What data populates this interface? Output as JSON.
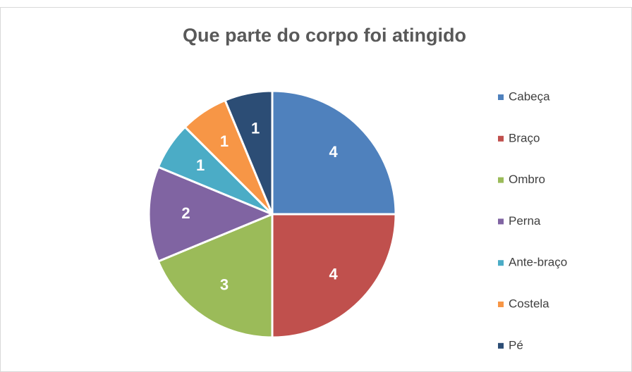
{
  "chart_data": {
    "type": "pie",
    "title": "Que parte do corpo foi atingido",
    "categories": [
      "Cabeça",
      "Braço",
      "Ombro",
      "Perna",
      "Ante-braço",
      "Costela",
      "Pé"
    ],
    "values": [
      4,
      4,
      3,
      2,
      1,
      1,
      1
    ],
    "colors": [
      "#4f81bd",
      "#c0504d",
      "#9bbb59",
      "#8064a2",
      "#4bacc6",
      "#f79646",
      "#2c4d75"
    ],
    "legend": "right"
  }
}
